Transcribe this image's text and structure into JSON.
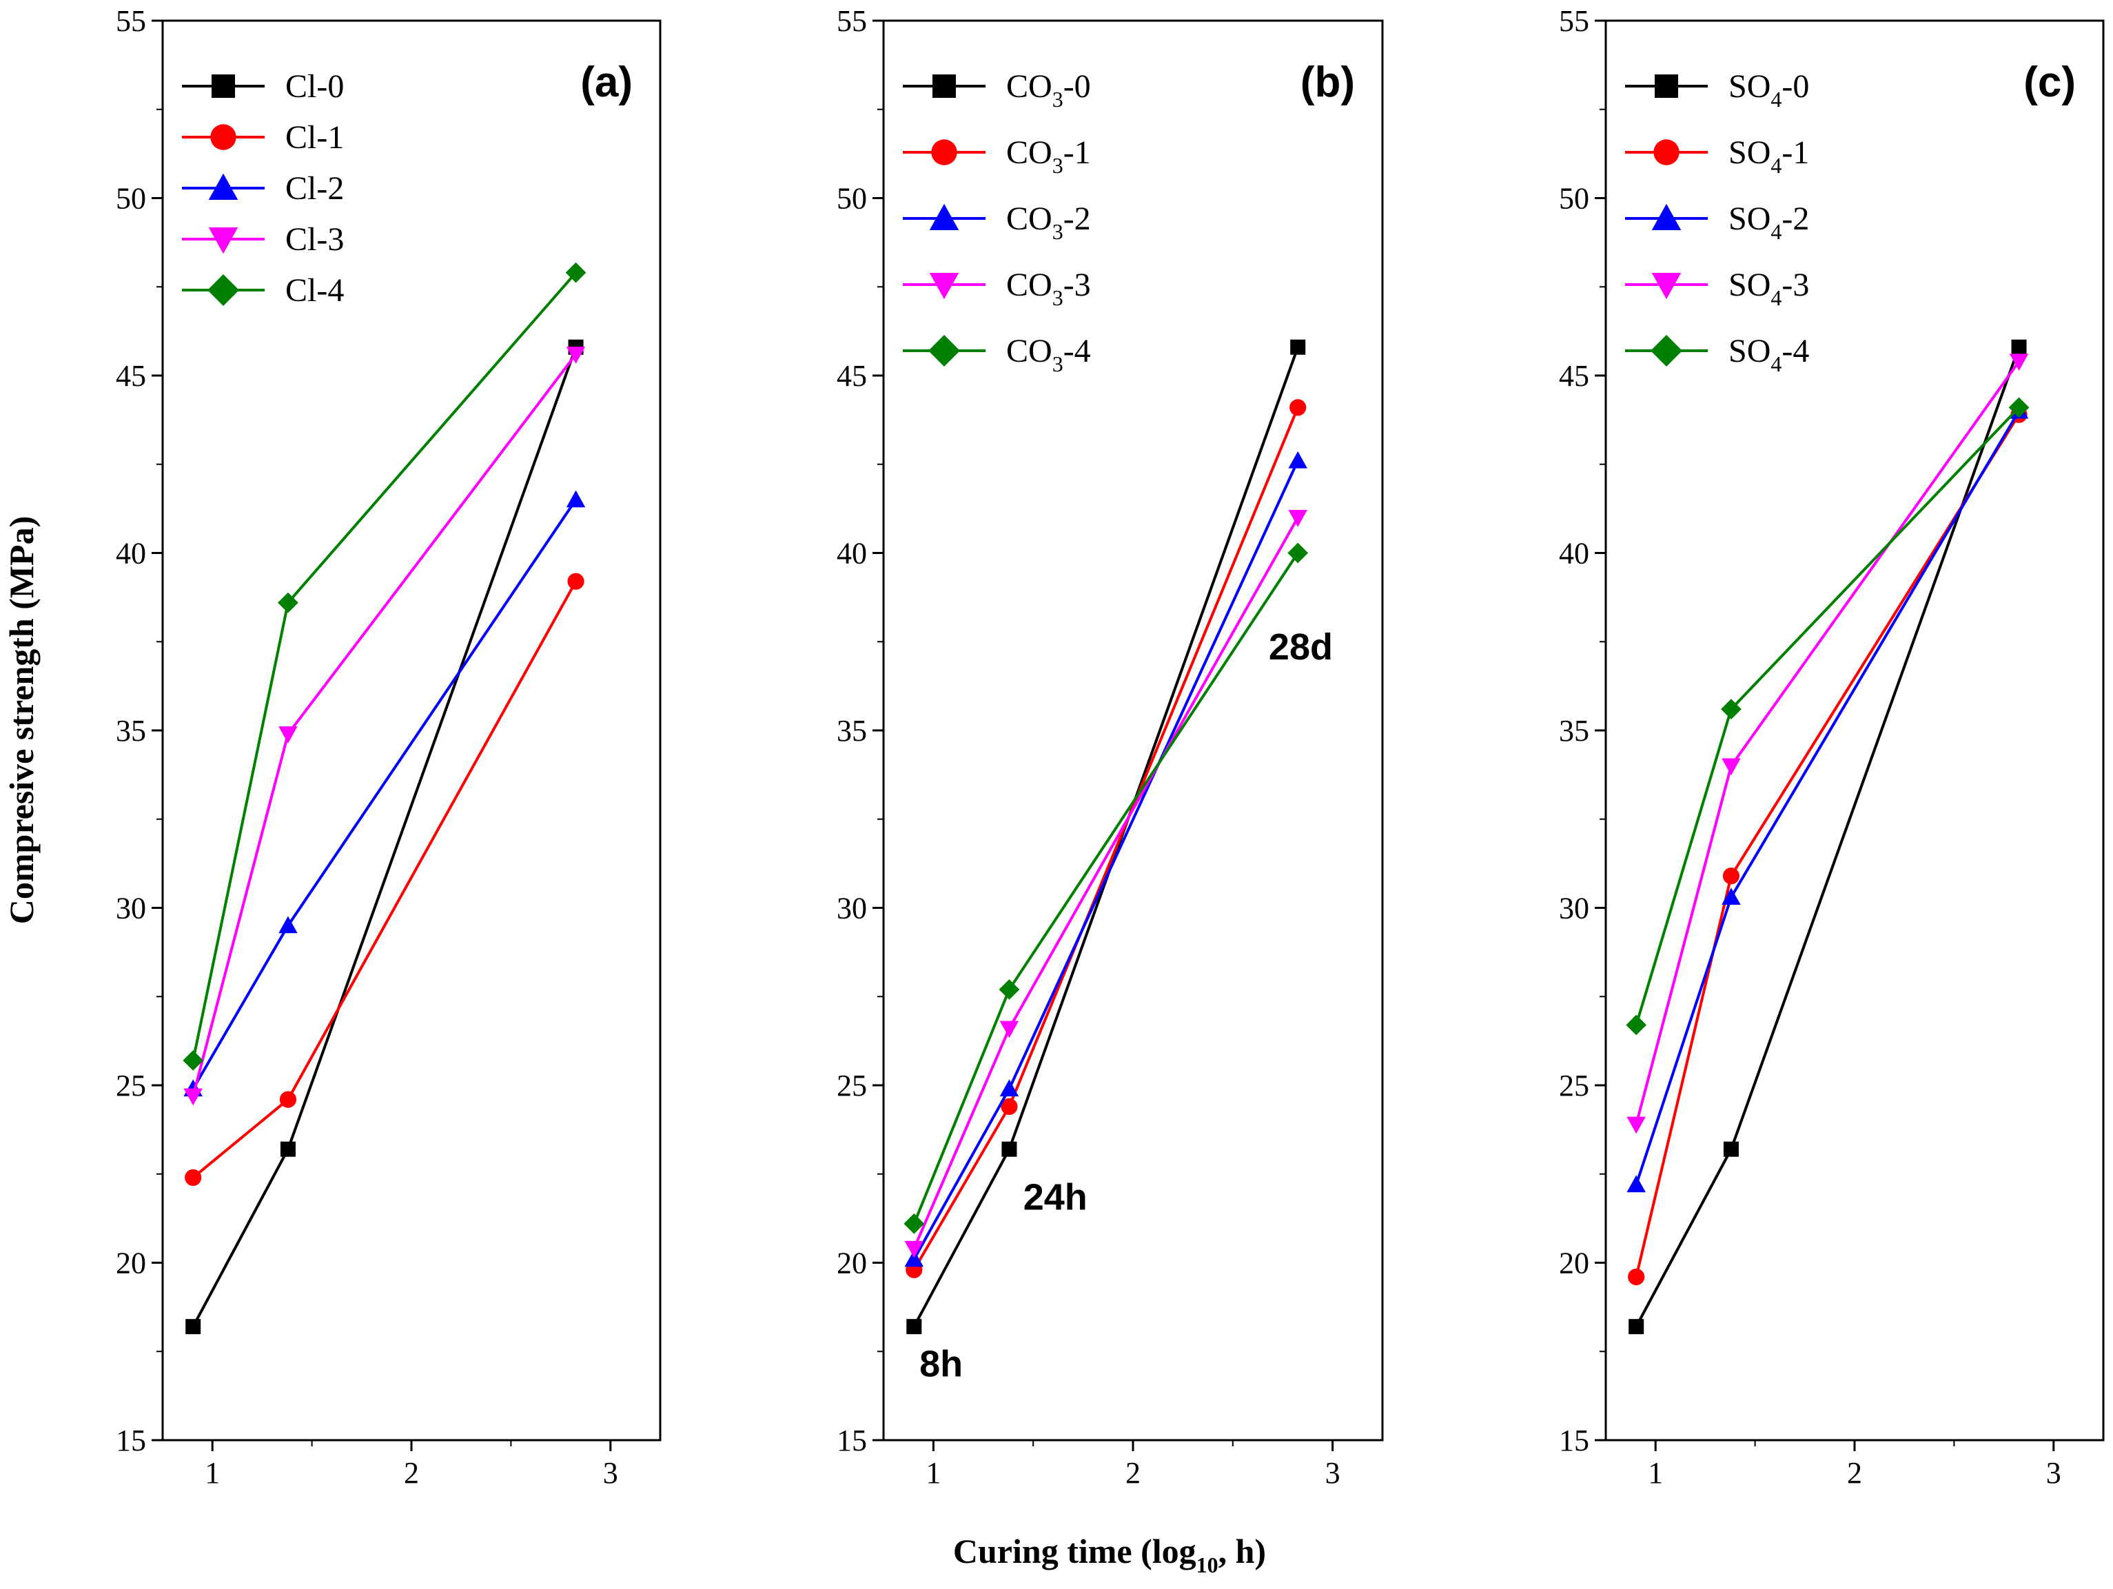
{
  "figure": {
    "ylabel": "Compresive strength (MPa)",
    "xlabel": {
      "prefix": "Curing time (log",
      "sub": "10",
      "suffix": ", h)"
    }
  },
  "chart_data": [
    {
      "type": "line",
      "panel_label": "(a)",
      "x": [
        0.903,
        1.38,
        2.826
      ],
      "xlim": [
        0.75,
        3.25
      ],
      "ylim": [
        15,
        55
      ],
      "xticks": [
        "1",
        "2",
        "3"
      ],
      "yticks": [
        "15",
        "20",
        "25",
        "30",
        "35",
        "40",
        "45",
        "50",
        "55"
      ],
      "legend_position": "top-left",
      "grid": false,
      "series": [
        {
          "name": "Cl-0",
          "color": "#000000",
          "marker": "square",
          "values": [
            18.2,
            23.2,
            45.8
          ]
        },
        {
          "name": "Cl-1",
          "color": "#ff0000",
          "marker": "circle",
          "values": [
            22.4,
            24.6,
            39.2
          ]
        },
        {
          "name": "Cl-2",
          "color": "#0000ff",
          "marker": "triangle-up",
          "values": [
            24.9,
            29.5,
            41.5
          ]
        },
        {
          "name": "Cl-3",
          "color": "#ff00ff",
          "marker": "triangle-down",
          "values": [
            24.7,
            34.9,
            45.6
          ]
        },
        {
          "name": "Cl-4",
          "color": "#008000",
          "marker": "diamond",
          "values": [
            25.7,
            38.6,
            47.9
          ]
        }
      ],
      "annotations": []
    },
    {
      "type": "line",
      "panel_label": "(b)",
      "x": [
        0.903,
        1.38,
        2.826
      ],
      "xlim": [
        0.75,
        3.25
      ],
      "ylim": [
        15,
        55
      ],
      "xticks": [
        "1",
        "2",
        "3"
      ],
      "yticks": [
        "15",
        "20",
        "25",
        "30",
        "35",
        "40",
        "45",
        "50",
        "55"
      ],
      "legend_position": "top-left",
      "grid": false,
      "series": [
        {
          "name": "CO3-0",
          "label_main": "CO",
          "label_sub": "3",
          "label_tail": "-0",
          "color": "#000000",
          "marker": "square",
          "values": [
            18.2,
            23.2,
            45.8
          ]
        },
        {
          "name": "CO3-1",
          "label_main": "CO",
          "label_sub": "3",
          "label_tail": "-1",
          "color": "#ff0000",
          "marker": "circle",
          "values": [
            19.8,
            24.4,
            44.1
          ]
        },
        {
          "name": "CO3-2",
          "label_main": "CO",
          "label_sub": "3",
          "label_tail": "-2",
          "color": "#0000ff",
          "marker": "triangle-up",
          "values": [
            20.1,
            24.9,
            42.6
          ]
        },
        {
          "name": "CO3-3",
          "label_main": "CO",
          "label_sub": "3",
          "label_tail": "-3",
          "color": "#ff00ff",
          "marker": "triangle-down",
          "values": [
            20.4,
            26.6,
            41.0
          ]
        },
        {
          "name": "CO3-4",
          "label_main": "CO",
          "label_sub": "3",
          "label_tail": "-4",
          "color": "#008000",
          "marker": "diamond",
          "values": [
            21.1,
            27.7,
            40.0
          ]
        }
      ],
      "annotations": [
        {
          "text": "8h",
          "x": 0.93,
          "y": 16.8
        },
        {
          "text": "24h",
          "x": 1.45,
          "y": 21.5
        },
        {
          "text": "28d",
          "x": 2.68,
          "y": 37.0
        }
      ]
    },
    {
      "type": "line",
      "panel_label": "(c)",
      "x": [
        0.903,
        1.38,
        2.826
      ],
      "xlim": [
        0.75,
        3.25
      ],
      "ylim": [
        15,
        55
      ],
      "xticks": [
        "1",
        "2",
        "3"
      ],
      "yticks": [
        "15",
        "20",
        "25",
        "30",
        "35",
        "40",
        "45",
        "50",
        "55"
      ],
      "legend_position": "top-left",
      "grid": false,
      "series": [
        {
          "name": "SO4-0",
          "label_main": "SO",
          "label_sub": "4",
          "label_tail": "-0",
          "color": "#000000",
          "marker": "square",
          "values": [
            18.2,
            23.2,
            45.8
          ]
        },
        {
          "name": "SO4-1",
          "label_main": "SO",
          "label_sub": "4",
          "label_tail": "-1",
          "color": "#ff0000",
          "marker": "circle",
          "values": [
            19.6,
            30.9,
            43.9
          ]
        },
        {
          "name": "SO4-2",
          "label_main": "SO",
          "label_sub": "4",
          "label_tail": "-2",
          "color": "#0000ff",
          "marker": "triangle-up",
          "values": [
            22.2,
            30.3,
            44.0
          ]
        },
        {
          "name": "SO4-3",
          "label_main": "SO",
          "label_sub": "4",
          "label_tail": "-3",
          "color": "#ff00ff",
          "marker": "triangle-down",
          "values": [
            23.9,
            34.0,
            45.4
          ]
        },
        {
          "name": "SO4-4",
          "label_main": "SO",
          "label_sub": "4",
          "label_tail": "-4",
          "color": "#008000",
          "marker": "diamond",
          "values": [
            26.7,
            35.6,
            44.1
          ]
        }
      ],
      "annotations": []
    }
  ]
}
